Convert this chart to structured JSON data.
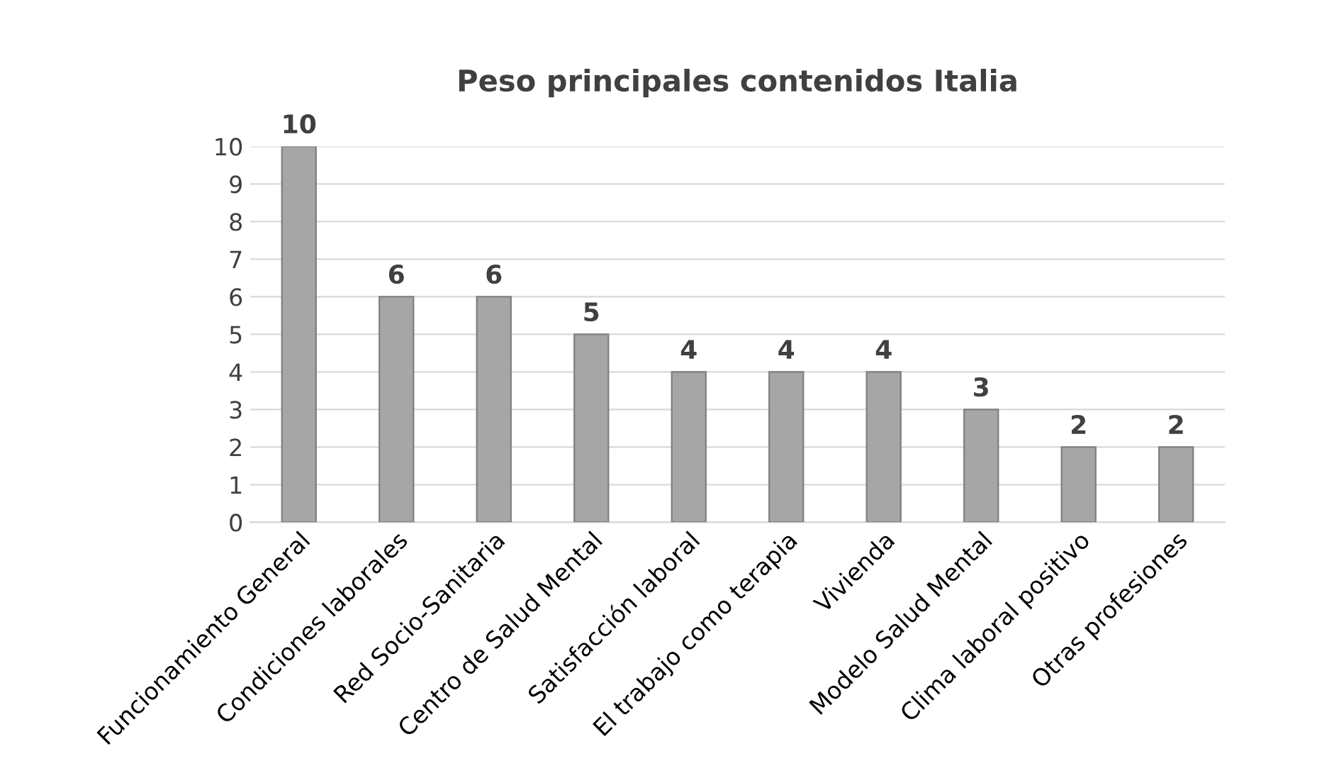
{
  "chart_data": {
    "type": "bar",
    "title": "Peso principales contenidos Italia",
    "categories": [
      "Funcionamiento General",
      "Condiciones laborales",
      "Red Socio-Sanitaria",
      "Centro de Salud Mental",
      "Satisfacción laboral",
      "El trabajo como terapia",
      "Vivienda",
      "Modelo Salud Mental",
      "Clima laboral positivo",
      "Otras profesiones"
    ],
    "values": [
      10,
      6,
      6,
      5,
      4,
      4,
      4,
      3,
      2,
      2
    ],
    "color": "#a6a6a6",
    "ylim": [
      0,
      10
    ],
    "yticks": [
      0,
      1,
      2,
      3,
      4,
      5,
      6,
      7,
      8,
      9,
      10
    ],
    "grid": "y",
    "data_labels": true
  }
}
